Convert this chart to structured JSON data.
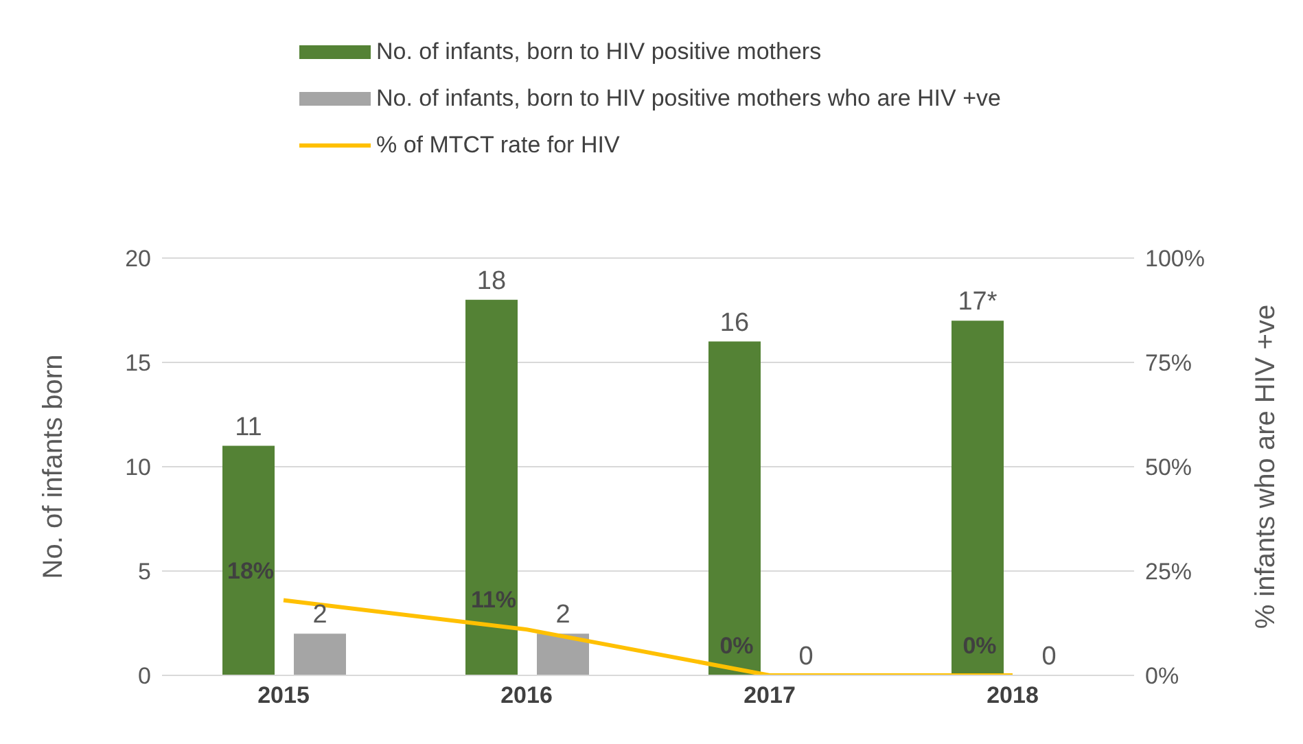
{
  "chart_data": {
    "type": "bar",
    "categories": [
      "2015",
      "2016",
      "2017",
      "2018"
    ],
    "ylabel": "No. of infants born",
    "y2label": "% infants who are HIV +ve",
    "ylim": [
      0,
      20
    ],
    "yticks": [
      0,
      5,
      10,
      15,
      20
    ],
    "y2lim": [
      0,
      100
    ],
    "y2ticks": [
      {
        "value": 0,
        "label": "0%"
      },
      {
        "value": 25,
        "label": "25%"
      },
      {
        "value": 50,
        "label": "50%"
      },
      {
        "value": 75,
        "label": "75%"
      },
      {
        "value": 100,
        "label": "100%"
      }
    ],
    "grid": "y",
    "legend": "top",
    "series": [
      {
        "name": "No. of infants, born to HIV positive mothers",
        "color": "#548235",
        "values": [
          11,
          18,
          16,
          17
        ],
        "value_labels": [
          "11",
          "18",
          "16",
          "17*"
        ]
      },
      {
        "name": "No. of infants, born to HIV positive mothers who are HIV +ve",
        "color": "#a5a5a5",
        "values": [
          2,
          2,
          0,
          0
        ],
        "value_labels": [
          "2",
          "2",
          "0",
          "0"
        ]
      },
      {
        "name": "% of MTCT rate for HIV",
        "type": "line",
        "axis": "y2",
        "color": "#ffc000",
        "values": [
          18,
          11,
          0,
          0
        ],
        "value_labels": [
          "18%",
          "11%",
          "0%",
          "0%"
        ]
      }
    ]
  }
}
